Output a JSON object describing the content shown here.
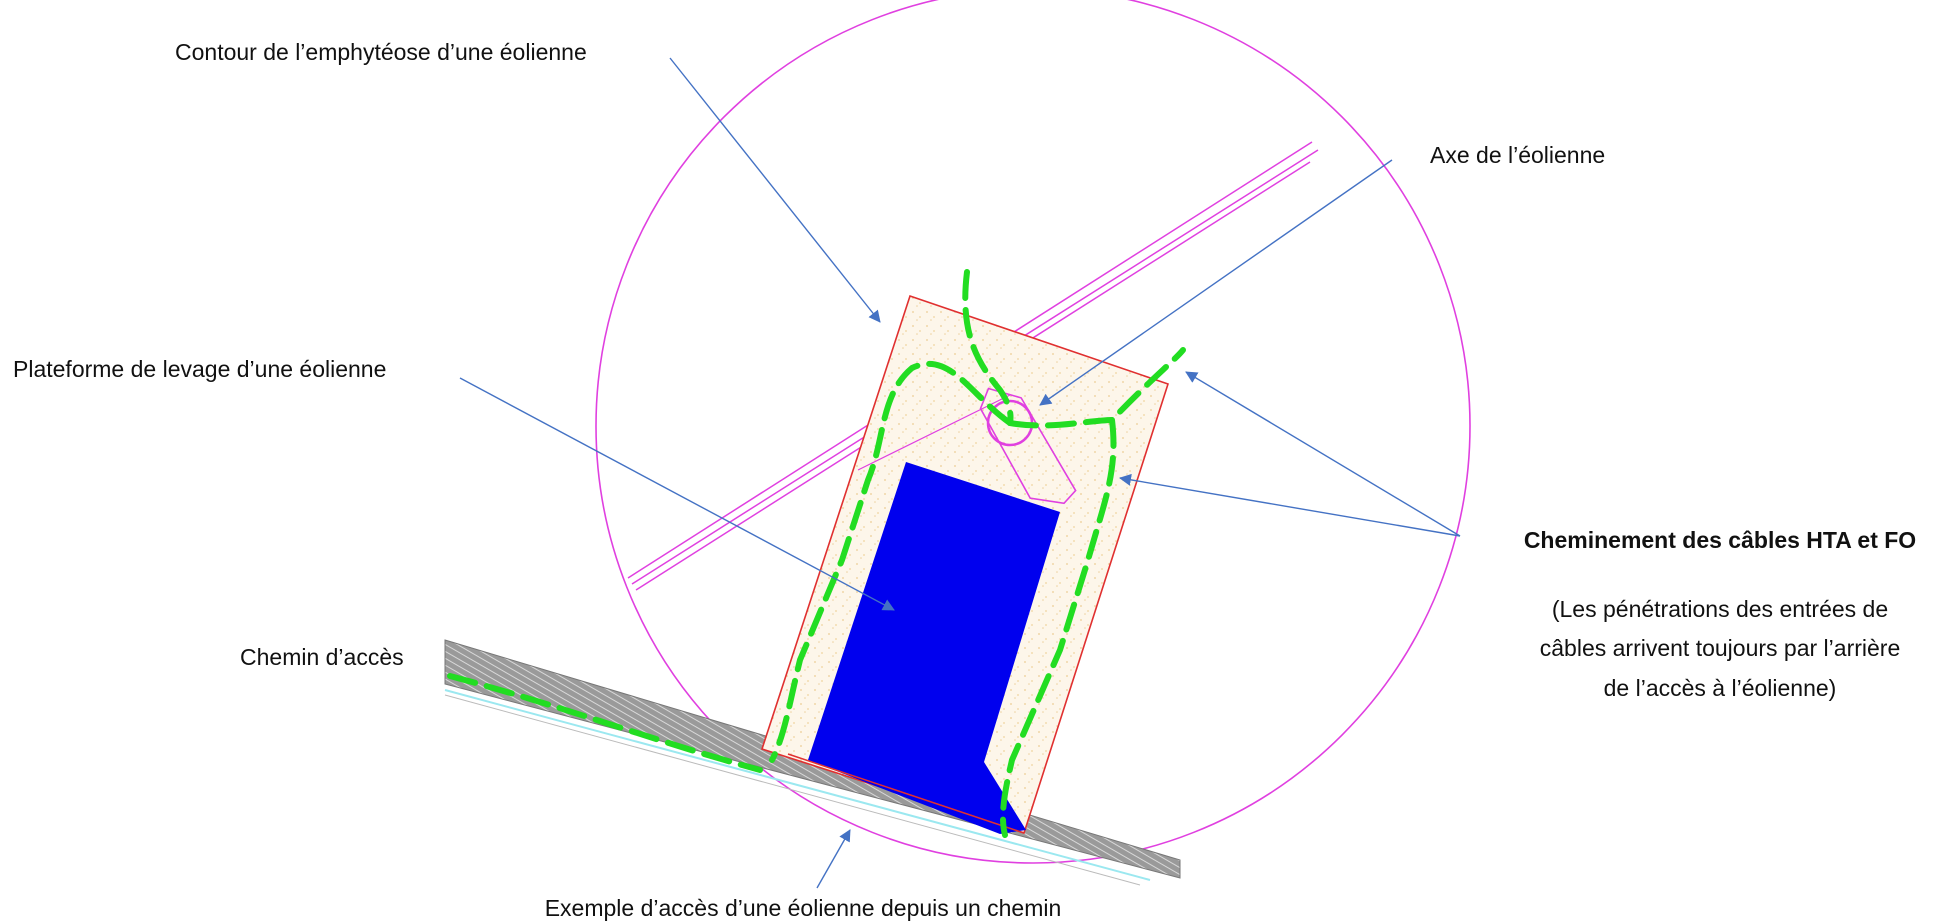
{
  "labels": {
    "contour": "Contour de l’emphytéose d’une éolienne",
    "axe": "Axe de l’éolienne",
    "plateforme": "Plateforme de levage d’une éolienne",
    "chemin": "Chemin d’accès",
    "cheminement_title": "Cheminement des câbles HTA et FO",
    "cheminement_note_1": "(Les pénétrations des entrées de",
    "cheminement_note_2": "câbles arrivent toujours par l’arrière",
    "cheminement_note_3": "de l’accès à l’éolienne)",
    "exemple": "Exemple d’accès d’une éolienne depuis un chemin"
  },
  "colors": {
    "emphyteose_circle": "#e040e0",
    "platform_outline": "#e03030",
    "platform_fill": "#fbf0dc",
    "lifting_area": "#0000ee",
    "cable_route": "#22dd22",
    "road": "#8a8a8a",
    "arrow": "#3a6fb0"
  }
}
